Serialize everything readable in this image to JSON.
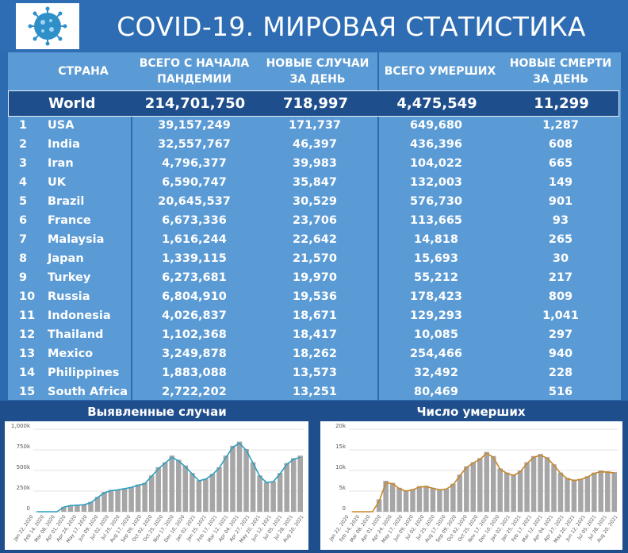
{
  "header": {
    "title": "COVID-19. МИРОВАЯ СТАТИСТИКА",
    "logo_icon": "virus-icon"
  },
  "columns": [
    "СТРАНА",
    "ВСЕГО С НАЧАЛА ПАНДЕМИИ",
    "НОВЫЕ СЛУЧАИ ЗА ДЕНЬ",
    "ВСЕГО УМЕРШИХ",
    "НОВЫЕ СМЕРТИ ЗА ДЕНЬ"
  ],
  "world": {
    "name": "World",
    "total_cases": "214,701,750",
    "new_cases": "718,997",
    "total_deaths": "4,475,549",
    "new_deaths": "11,299"
  },
  "rows": [
    {
      "rank": "1",
      "country": "USA",
      "total_cases": "39,157,249",
      "new_cases": "171,737",
      "total_deaths": "649,680",
      "new_deaths": "1,287"
    },
    {
      "rank": "2",
      "country": "India",
      "total_cases": "32,557,767",
      "new_cases": "46,397",
      "total_deaths": "436,396",
      "new_deaths": "608"
    },
    {
      "rank": "3",
      "country": "Iran",
      "total_cases": "4,796,377",
      "new_cases": "39,983",
      "total_deaths": "104,022",
      "new_deaths": "665"
    },
    {
      "rank": "4",
      "country": "UK",
      "total_cases": "6,590,747",
      "new_cases": "35,847",
      "total_deaths": "132,003",
      "new_deaths": "149"
    },
    {
      "rank": "5",
      "country": "Brazil",
      "total_cases": "20,645,537",
      "new_cases": "30,529",
      "total_deaths": "576,730",
      "new_deaths": "901"
    },
    {
      "rank": "6",
      "country": "France",
      "total_cases": "6,673,336",
      "new_cases": "23,706",
      "total_deaths": "113,665",
      "new_deaths": "93"
    },
    {
      "rank": "7",
      "country": "Malaysia",
      "total_cases": "1,616,244",
      "new_cases": "22,642",
      "total_deaths": "14,818",
      "new_deaths": "265"
    },
    {
      "rank": "8",
      "country": "Japan",
      "total_cases": "1,339,115",
      "new_cases": "21,570",
      "total_deaths": "15,693",
      "new_deaths": "30"
    },
    {
      "rank": "9",
      "country": "Turkey",
      "total_cases": "6,273,681",
      "new_cases": "19,970",
      "total_deaths": "55,212",
      "new_deaths": "217"
    },
    {
      "rank": "10",
      "country": "Russia",
      "total_cases": "6,804,910",
      "new_cases": "19,536",
      "total_deaths": "178,423",
      "new_deaths": "809"
    },
    {
      "rank": "11",
      "country": "Indonesia",
      "total_cases": "4,026,837",
      "new_cases": "18,671",
      "total_deaths": "129,293",
      "new_deaths": "1,041"
    },
    {
      "rank": "12",
      "country": "Thailand",
      "total_cases": "1,102,368",
      "new_cases": "18,417",
      "total_deaths": "10,085",
      "new_deaths": "297"
    },
    {
      "rank": "13",
      "country": "Mexico",
      "total_cases": "3,249,878",
      "new_cases": "18,262",
      "total_deaths": "254,466",
      "new_deaths": "940"
    },
    {
      "rank": "14",
      "country": "Philippines",
      "total_cases": "1,883,088",
      "new_cases": "13,573",
      "total_deaths": "32,492",
      "new_deaths": "228"
    },
    {
      "rank": "15",
      "country": "South Africa",
      "total_cases": "2,722,202",
      "new_cases": "13,251",
      "total_deaths": "80,469",
      "new_deaths": "516"
    }
  ],
  "chart_data": [
    {
      "type": "bar",
      "title": "Выявленные случаи",
      "ylim": [
        0,
        1000000
      ],
      "y_ticks": [
        "0",
        "250k",
        "500k",
        "750k",
        "1,000k"
      ],
      "x_ticks": [
        "Jan 22, 2020",
        "Feb 14, 2020",
        "Mar 08, 2020",
        "Apr 01, 2020",
        "Apr 24, 2020",
        "May 17, 2020",
        "Jun 09, 2020",
        "Jul 02, 2020",
        "Jul 25, 2020",
        "Aug 17, 2020",
        "Sep 09, 2020",
        "Oct 02, 2020",
        "Oct 25, 2020",
        "Nov 17, 2020",
        "Dec 10, 2020",
        "Jan 02, 2021",
        "Jan 25, 2021",
        "Feb 17, 2021",
        "Mar 12, 2021",
        "Apr 04, 2021",
        "Apr 27, 2021",
        "May 20, 2021",
        "Jun 12, 2021",
        "Jul 05, 2021",
        "Jul 28, 2021",
        "Aug 20, 2021"
      ],
      "series": [
        {
          "kind": "bar",
          "color": "#a6a6a6",
          "values": [
            0,
            0,
            0,
            0,
            60000,
            80000,
            85000,
            90000,
            120000,
            180000,
            240000,
            265000,
            270000,
            285000,
            300000,
            330000,
            350000,
            440000,
            540000,
            600000,
            680000,
            630000,
            560000,
            470000,
            380000,
            400000,
            460000,
            540000,
            680000,
            800000,
            850000,
            760000,
            600000,
            440000,
            360000,
            370000,
            470000,
            590000,
            650000,
            680000
          ]
        },
        {
          "kind": "line",
          "color": "#2e9fc0",
          "values": [
            0,
            0,
            0,
            0,
            55000,
            75000,
            80000,
            85000,
            110000,
            170000,
            230000,
            255000,
            265000,
            280000,
            295000,
            320000,
            340000,
            430000,
            520000,
            590000,
            660000,
            615000,
            545000,
            460000,
            375000,
            395000,
            450000,
            530000,
            660000,
            780000,
            830000,
            745000,
            590000,
            430000,
            355000,
            365000,
            460000,
            575000,
            635000,
            660000
          ]
        }
      ]
    },
    {
      "type": "bar",
      "title": "Число умерших",
      "ylim": [
        0,
        20000
      ],
      "y_ticks": [
        "0",
        "5k",
        "10k",
        "15k",
        "20k"
      ],
      "x_ticks": [
        "Jan 22, 2020",
        "Feb 14, 2020",
        "Mar 08, 2020",
        "Apr 01, 2020",
        "Apr 24, 2020",
        "May 17, 2020",
        "Jun 09, 2020",
        "Jul 02, 2020",
        "Jul 25, 2020",
        "Aug 17, 2020",
        "Sep 09, 2020",
        "Oct 02, 2020",
        "Oct 25, 2020",
        "Nov 17, 2020",
        "Dec 10, 2020",
        "Jan 02, 2021",
        "Jan 25, 2021",
        "Feb 17, 2021",
        "Mar 12, 2021",
        "Apr 04, 2021",
        "Apr 27, 2021",
        "May 20, 2021",
        "Jun 12, 2021",
        "Jul 05, 2021",
        "Jul 28, 2021",
        "Aug 20, 2021"
      ],
      "series": [
        {
          "kind": "bar",
          "color": "#a6a6a6",
          "values": [
            0,
            0,
            0,
            0,
            3000,
            7500,
            7000,
            5800,
            5200,
            5500,
            6200,
            6300,
            5800,
            5400,
            5600,
            6800,
            9000,
            11000,
            12000,
            13000,
            14500,
            13500,
            10500,
            9500,
            9000,
            10000,
            12000,
            13500,
            14000,
            13200,
            11500,
            9500,
            8200,
            7800,
            8000,
            8600,
            9500,
            10000,
            9800,
            9600
          ]
        },
        {
          "kind": "line",
          "color": "#c8862a",
          "values": [
            0,
            0,
            0,
            0,
            2500,
            7000,
            6800,
            5600,
            5000,
            5300,
            6000,
            6100,
            5700,
            5300,
            5500,
            6500,
            8700,
            10700,
            11800,
            12700,
            14200,
            13200,
            10300,
            9300,
            8800,
            9700,
            11700,
            13200,
            13700,
            13000,
            11300,
            9300,
            8000,
            7600,
            7800,
            8400,
            9300,
            9700,
            9600,
            9400
          ]
        }
      ]
    }
  ]
}
